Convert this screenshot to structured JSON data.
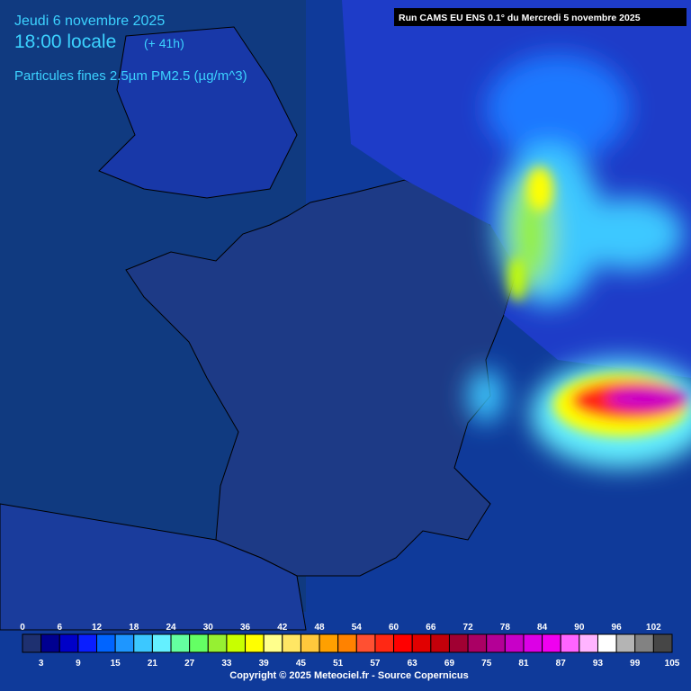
{
  "header": {
    "date": "Jeudi 6 novembre 2025",
    "time": "18:00 locale",
    "lead": "(+ 41h)",
    "variable": "Particules fines 2.5µm PM2.5 (µg/m^3)",
    "run": "Run CAMS EU ENS 0.1° du Mercredi 5 novembre 2025"
  },
  "colorbar": {
    "ticks": [
      0,
      3,
      6,
      9,
      12,
      15,
      18,
      21,
      24,
      27,
      30,
      33,
      36,
      39,
      42,
      45,
      48,
      51,
      54,
      57,
      60,
      63,
      66,
      69,
      72,
      75,
      78,
      81,
      84,
      87,
      90,
      93,
      96,
      99,
      102,
      105
    ],
    "colors": [
      "#1e3070",
      "#000090",
      "#0000c8",
      "#0a1eff",
      "#0064ff",
      "#1e96ff",
      "#3cc8ff",
      "#64f0ff",
      "#64ffa0",
      "#64ff64",
      "#96f032",
      "#c8ff00",
      "#ffff00",
      "#ffff8c",
      "#ffe664",
      "#ffc83c",
      "#ffa000",
      "#ff8200",
      "#ff5032",
      "#ff2814",
      "#ff0000",
      "#e10000",
      "#c3000a",
      "#a00032",
      "#aa0064",
      "#b40096",
      "#c800c8",
      "#dc00e6",
      "#f000f0",
      "#ff64ff",
      "#ffb4ff",
      "#ffffff",
      "#b4b4b4",
      "#828282",
      "#464646"
    ]
  },
  "footer": {
    "copyright": "Copyright © 2025 Meteociel.fr - Source Copernicus"
  }
}
